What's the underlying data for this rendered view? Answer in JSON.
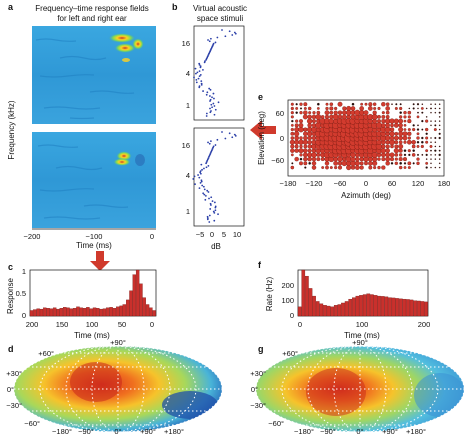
{
  "panels": {
    "a": {
      "letter": "a",
      "title_line1": "Frequency–time response fields",
      "title_line2": "for left and right ear",
      "ylabel": "Frequency (kHz)",
      "xlabel": "Time (ms)",
      "xticks": [
        "−200",
        "−100",
        "0"
      ]
    },
    "b": {
      "letter": "b",
      "title_line1": "Virtual acoustic",
      "title_line2": "space stimuli",
      "yticks": [
        "16",
        "4",
        "1"
      ],
      "xticks": [
        "−5",
        "0",
        "5",
        "10"
      ],
      "xlabel": "dB"
    },
    "c": {
      "letter": "c",
      "ylabel": "Response",
      "xlabel": "Time  (ms)",
      "yticks": [
        "0",
        "0.5",
        "1"
      ],
      "xticks": [
        "200",
        "150",
        "100",
        "50",
        "0"
      ]
    },
    "d": {
      "letter": "d"
    },
    "e": {
      "letter": "e",
      "ylabel": "Elevation (deg)",
      "xlabel": "Azimuth (deg)",
      "yticks": [
        "60",
        "0",
        "−60"
      ],
      "xticks": [
        "−180",
        "−120",
        "−60",
        "0",
        "60",
        "120",
        "180"
      ]
    },
    "f": {
      "letter": "f",
      "ylabel": "Rate (Hz)",
      "xlabel": "Time  (ms)",
      "yticks": [
        "0",
        "100",
        "200"
      ],
      "xticks": [
        "0",
        "100",
        "200"
      ]
    },
    "g": {
      "letter": "g"
    }
  },
  "map_labels": {
    "top": "+90°",
    "lat60": "+60°",
    "lat30": "+30°",
    "lat0": "0°",
    "latm30": "−30°",
    "latm60": "−60°",
    "bottom": "−180°−90°   0°   +90° +180°",
    "bottom_left_1": "−180°",
    "bottom_left_2": "−90°",
    "bottom_center": "0°",
    "bottom_right_1": "+90°",
    "bottom_right_2": "+180°"
  },
  "chart_data": [
    {
      "panel": "c",
      "type": "bar",
      "xlabel": "Time  (ms)",
      "ylabel": "Response",
      "xlim": [
        200,
        0
      ],
      "ylim": [
        0,
        1
      ],
      "values": [
        0.12,
        0.14,
        0.16,
        0.15,
        0.18,
        0.17,
        0.16,
        0.18,
        0.15,
        0.17,
        0.19,
        0.18,
        0.16,
        0.17,
        0.2,
        0.18,
        0.17,
        0.19,
        0.16,
        0.18,
        0.17,
        0.15,
        0.16,
        0.18,
        0.19,
        0.17,
        0.2,
        0.22,
        0.25,
        0.35,
        0.55,
        0.9,
        1.0,
        0.7,
        0.4,
        0.25,
        0.18,
        0.12
      ]
    },
    {
      "panel": "f",
      "type": "bar",
      "xlabel": "Time  (ms)",
      "ylabel": "Rate (Hz)",
      "xlim": [
        0,
        200
      ],
      "ylim": [
        0,
        300
      ],
      "values": [
        60,
        300,
        260,
        180,
        130,
        95,
        80,
        70,
        65,
        60,
        70,
        75,
        85,
        95,
        110,
        120,
        130,
        135,
        140,
        145,
        140,
        135,
        130,
        128,
        125,
        120,
        118,
        115,
        112,
        110,
        108,
        105,
        100,
        98,
        95,
        92
      ]
    },
    {
      "panel": "e",
      "type": "scatter",
      "xlabel": "Azimuth (deg)",
      "ylabel": "Elevation (deg)",
      "xlim": [
        -180,
        180
      ],
      "ylim": [
        -90,
        90
      ]
    }
  ]
}
